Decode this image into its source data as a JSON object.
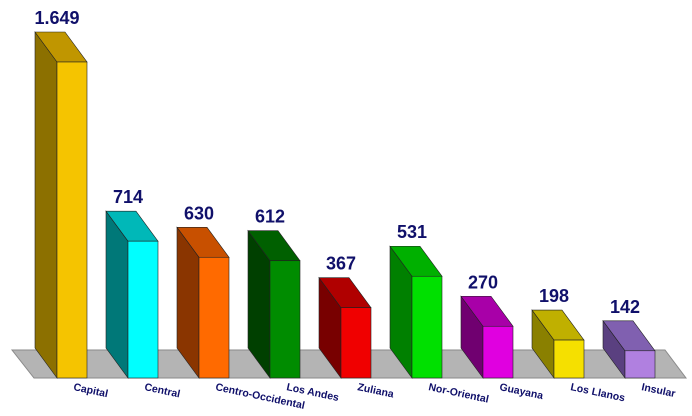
{
  "chart_data": {
    "type": "bar",
    "title": "",
    "xlabel": "",
    "ylabel": "",
    "ylim": [
      0,
      1700
    ],
    "grid": false,
    "legend": "none",
    "style": "3d",
    "categories": [
      "Capital",
      "Central",
      "Centro-Occidental",
      "Los Andes",
      "Zuliana",
      "Nor-Oriental",
      "Guayana",
      "Los Llanos",
      "Insular"
    ],
    "values": [
      1649,
      714,
      630,
      612,
      367,
      531,
      270,
      198,
      142
    ],
    "value_labels": [
      "1.649",
      "714",
      "630",
      "612",
      "367",
      "531",
      "270",
      "198",
      "142"
    ],
    "colors": [
      {
        "front": "#f5c400",
        "side": "#8c7000",
        "top": "#c09600"
      },
      {
        "front": "#00ffff",
        "side": "#007878",
        "top": "#00b8b8"
      },
      {
        "front": "#ff6a00",
        "side": "#8a3500",
        "top": "#c85000"
      },
      {
        "front": "#008c00",
        "side": "#004000",
        "top": "#006000"
      },
      {
        "front": "#f00000",
        "side": "#780000",
        "top": "#b00000"
      },
      {
        "front": "#00e000",
        "side": "#008000",
        "top": "#00b000"
      },
      {
        "front": "#e000e0",
        "side": "#700070",
        "top": "#a800a8"
      },
      {
        "front": "#f5e000",
        "side": "#8a8000",
        "top": "#c0b000"
      },
      {
        "front": "#b080e0",
        "side": "#5a4080",
        "top": "#8060b0"
      }
    ],
    "floor_color": "#b4b4b4"
  }
}
